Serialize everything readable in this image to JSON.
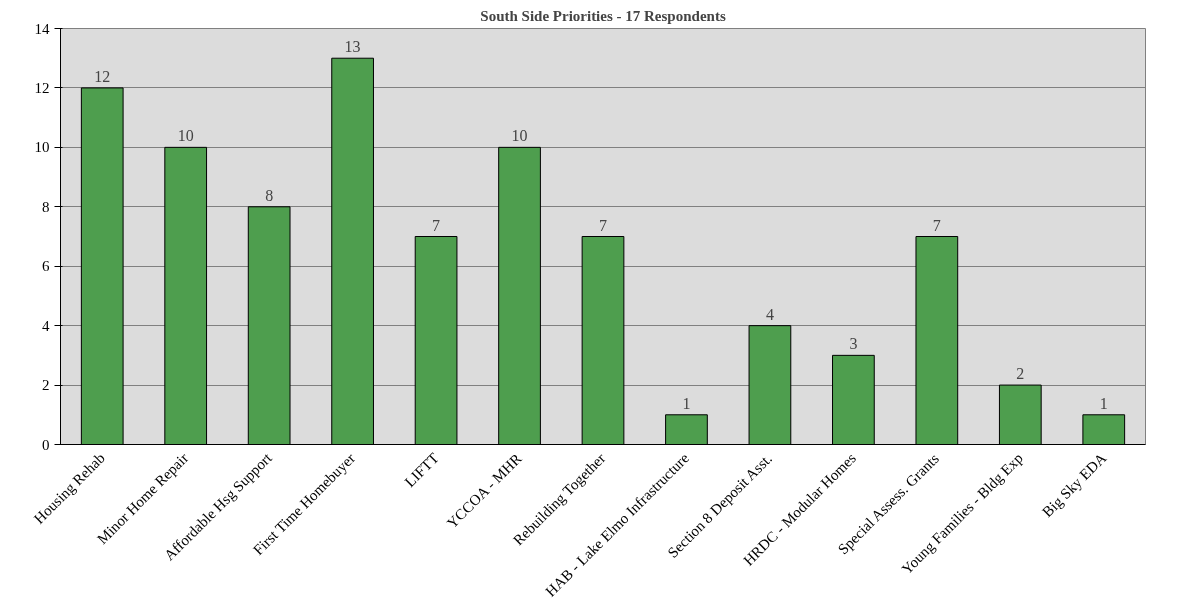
{
  "chart_data": {
    "type": "bar",
    "title": "South Side Priorities - 17 Respondents",
    "categories": [
      "Housing Rehab",
      "Minor Home Repair",
      "Affordable Hsg Support",
      "First Time Homebuyer",
      "LIFTT",
      "YCCOA - MHR",
      "Rebuilding Together",
      "HAB - Lake Elmo Infrastructure",
      "Section 8 Deposit Asst.",
      "HRDC - Modular Homes",
      "Special Assess. Grants",
      "Young Families - Bldg Exp",
      "Big Sky EDA"
    ],
    "values": [
      12,
      10,
      8,
      13,
      7,
      10,
      7,
      1,
      4,
      3,
      7,
      2,
      1
    ],
    "color": "#4e9e4e",
    "ylim": [
      0,
      14
    ],
    "yticks": [
      0,
      2,
      4,
      6,
      8,
      10,
      12,
      14
    ],
    "grid": "y",
    "data_labels": true
  }
}
